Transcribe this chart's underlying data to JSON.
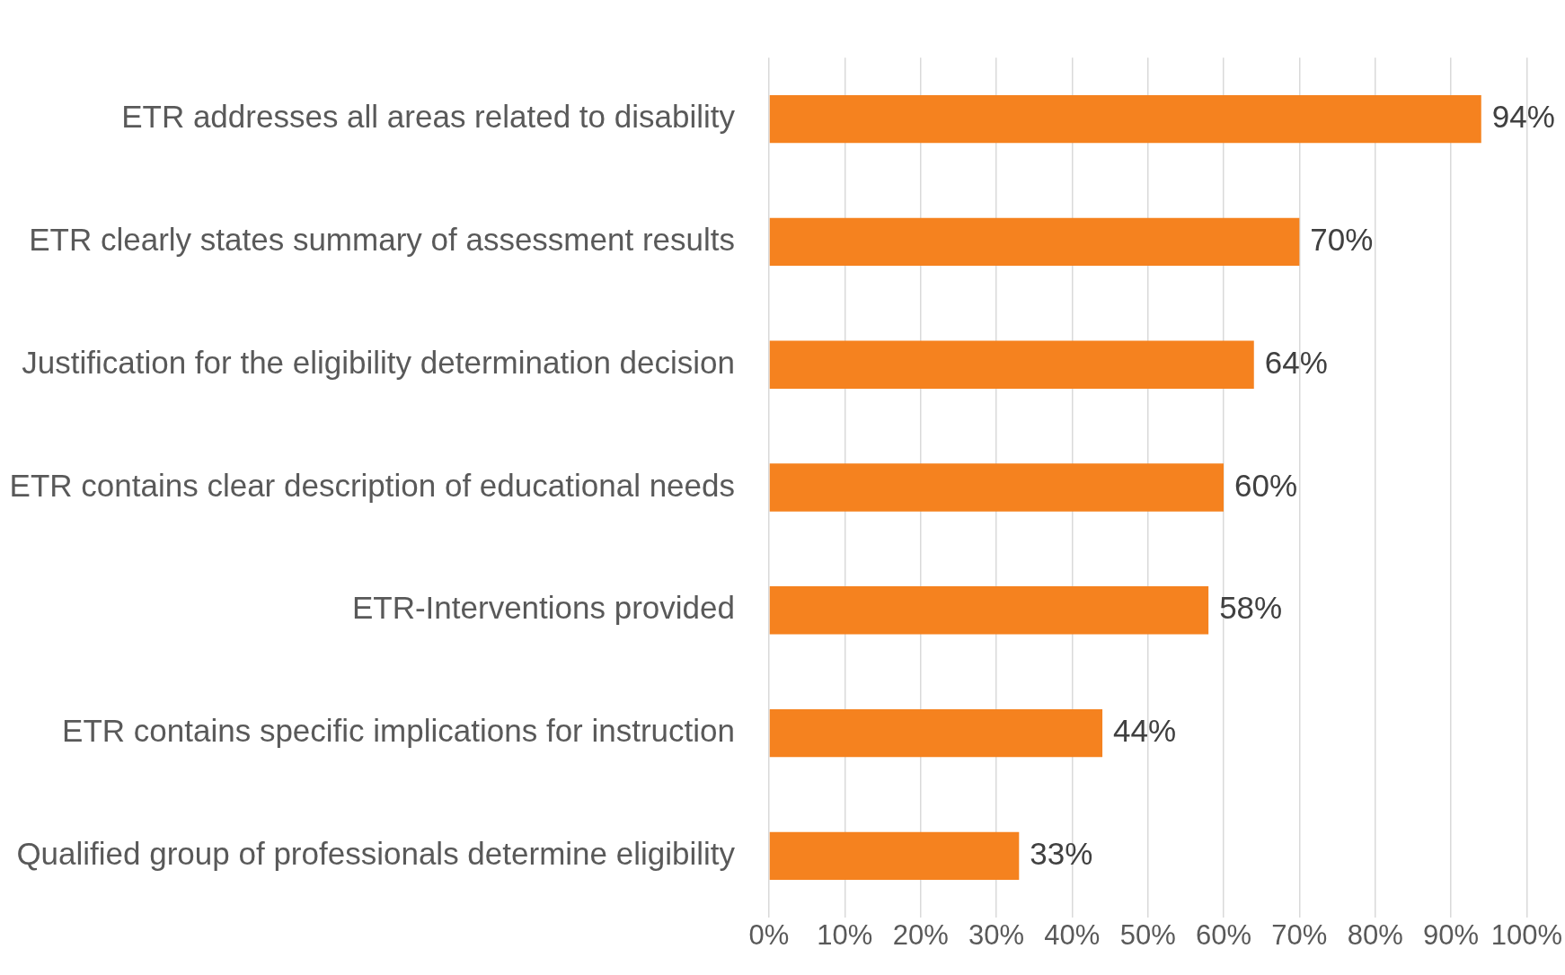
{
  "chart_data": {
    "type": "bar",
    "orientation": "horizontal",
    "categories": [
      "ETR addresses all areas related to disability",
      "ETR clearly states summary of assessment results",
      "Justification for the eligibility determination decision",
      "ETR contains clear description of educational needs",
      "ETR-Interventions provided",
      "ETR contains specific implications for instruction",
      "Qualified group of professionals determine eligibility"
    ],
    "values": [
      94,
      70,
      64,
      60,
      58,
      44,
      33
    ],
    "value_labels": [
      "94%",
      "70%",
      "64%",
      "60%",
      "58%",
      "44%",
      "33%"
    ],
    "color": "#f5821f",
    "xlim": [
      0,
      100
    ],
    "xticks": [
      {
        "value": 0,
        "label": "0%"
      },
      {
        "value": 10,
        "label": "10%"
      },
      {
        "value": 20,
        "label": "20%"
      },
      {
        "value": 30,
        "label": "30%"
      },
      {
        "value": 40,
        "label": "40%"
      },
      {
        "value": 50,
        "label": "50%"
      },
      {
        "value": 60,
        "label": "60%"
      },
      {
        "value": 70,
        "label": "70%"
      },
      {
        "value": 80,
        "label": "80%"
      },
      {
        "value": 90,
        "label": "90%"
      },
      {
        "value": 100,
        "label": "100%"
      }
    ],
    "grid": "x",
    "legend": false
  }
}
